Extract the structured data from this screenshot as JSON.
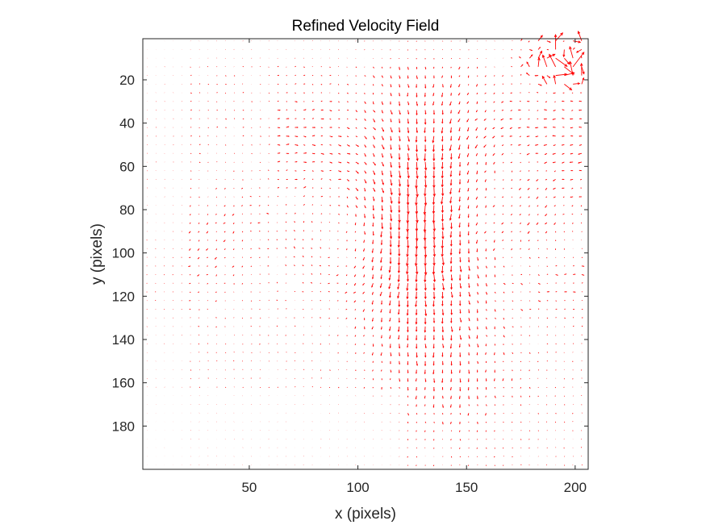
{
  "chart_data": {
    "type": "quiver",
    "title": "Refined Velocity Field",
    "xlabel": "x (pixels)",
    "ylabel": "y (pixels)",
    "xlim": [
      1,
      206
    ],
    "ylim": [
      1,
      200
    ],
    "y_reversed": true,
    "x_ticks": [
      50,
      100,
      150,
      200
    ],
    "y_ticks": [
      20,
      40,
      60,
      80,
      100,
      120,
      140,
      160,
      180
    ],
    "grid": false,
    "legend": "none",
    "arrow_color": "#ff0000",
    "axis_color": "#262626",
    "sample_spacing_pixels": 4,
    "field_summary": "Strong vertical flow column near x=100-165 spanning y=20-170; weak arrows at left edge and lower left; large arrows in top-right corner near x=175-205, y=1-25"
  }
}
